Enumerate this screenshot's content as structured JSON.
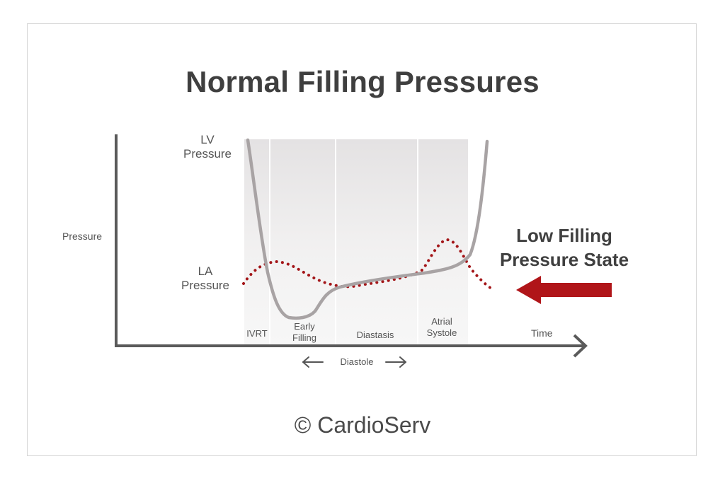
{
  "title": "Normal Filling Pressures",
  "y_axis_label": "Pressure",
  "x_axis_label": "Time",
  "curves": {
    "lv": {
      "line1": "LV",
      "line2": "Pressure"
    },
    "la": {
      "line1": "LA",
      "line2": "Pressure"
    }
  },
  "phases": [
    {
      "line1": "IVRT",
      "line2": ""
    },
    {
      "line1": "Early",
      "line2": "Filling"
    },
    {
      "line1": "Diastasis",
      "line2": ""
    },
    {
      "line1": "Atrial",
      "line2": "Systole"
    }
  ],
  "diastole_label": "Diastole",
  "state_label": {
    "line1": "Low Filling",
    "line2": "Pressure State"
  },
  "copyright": "© CardioServ",
  "colors": {
    "lv_curve": "#a8a3a4",
    "la_curve": "#a31518",
    "arrow": "#b01519",
    "axis": "#5a5a5a",
    "phase_band": "#ebeaea"
  }
}
